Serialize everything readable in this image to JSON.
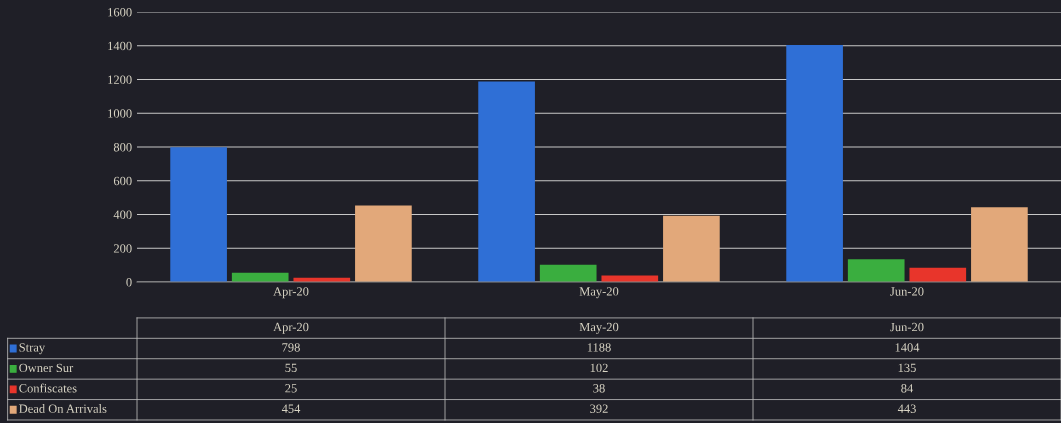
{
  "chart_data": {
    "type": "bar",
    "categories": [
      "Apr-20",
      "May-20",
      "Jun-20"
    ],
    "series": [
      {
        "name": "Stray",
        "color": "#2f6fd6",
        "values": [
          798,
          1188,
          1404
        ]
      },
      {
        "name": "Owner Sur",
        "color": "#3aae3f",
        "values": [
          55,
          102,
          135
        ]
      },
      {
        "name": "Confiscates",
        "color": "#e8352b",
        "values": [
          25,
          38,
          84
        ]
      },
      {
        "name": "Dead On Arrivals",
        "color": "#e2a87a",
        "values": [
          454,
          392,
          443
        ]
      }
    ],
    "ylim": [
      0,
      1600
    ],
    "yticks": [
      0,
      200,
      400,
      600,
      800,
      1000,
      1200,
      1400,
      1600
    ],
    "grid": "y",
    "legend": "bottom",
    "data_labels": true
  }
}
